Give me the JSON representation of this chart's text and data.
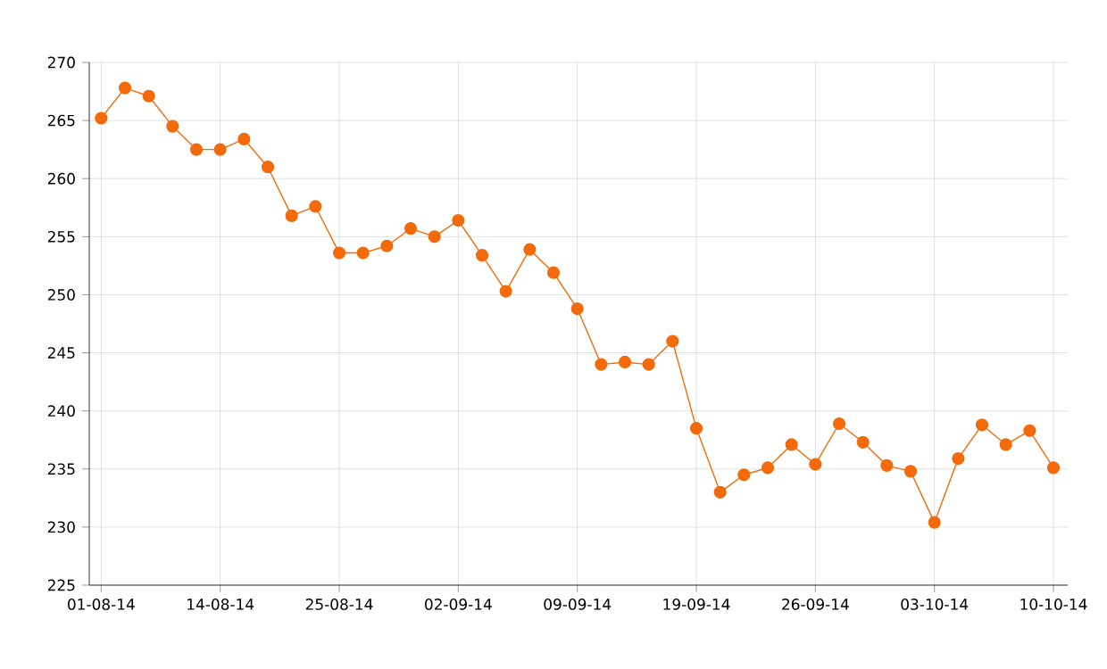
{
  "chart_data": {
    "type": "line",
    "categories": [
      "01-08-14",
      null,
      null,
      null,
      null,
      "14-08-14",
      null,
      null,
      null,
      null,
      "25-08-14",
      null,
      null,
      null,
      null,
      "02-09-14",
      null,
      null,
      null,
      null,
      "09-09-14",
      null,
      null,
      null,
      null,
      "19-09-14",
      null,
      null,
      null,
      null,
      "26-09-14",
      null,
      null,
      null,
      null,
      "03-10-14",
      null,
      null,
      null,
      null,
      "10-10-14"
    ],
    "series": [
      {
        "color": "#f26a0a",
        "values": [
          265.2,
          267.8,
          267.1,
          264.5,
          262.5,
          262.5,
          263.4,
          261.0,
          256.8,
          257.6,
          253.6,
          253.6,
          254.2,
          255.7,
          255.0,
          256.4,
          253.4,
          250.3,
          253.9,
          251.9,
          248.8,
          244.0,
          244.2,
          244.0,
          246.0,
          238.5,
          233.0,
          234.5,
          235.1,
          237.1,
          235.4,
          238.9,
          237.3,
          235.3,
          234.8,
          230.4,
          235.9,
          238.8,
          237.1,
          238.3,
          235.1
        ]
      }
    ],
    "ylim": [
      225,
      270
    ],
    "yticks": [
      225,
      230,
      235,
      240,
      245,
      250,
      255,
      260,
      265,
      270
    ],
    "grid": true,
    "marker": "circle",
    "line_style": "solid"
  }
}
